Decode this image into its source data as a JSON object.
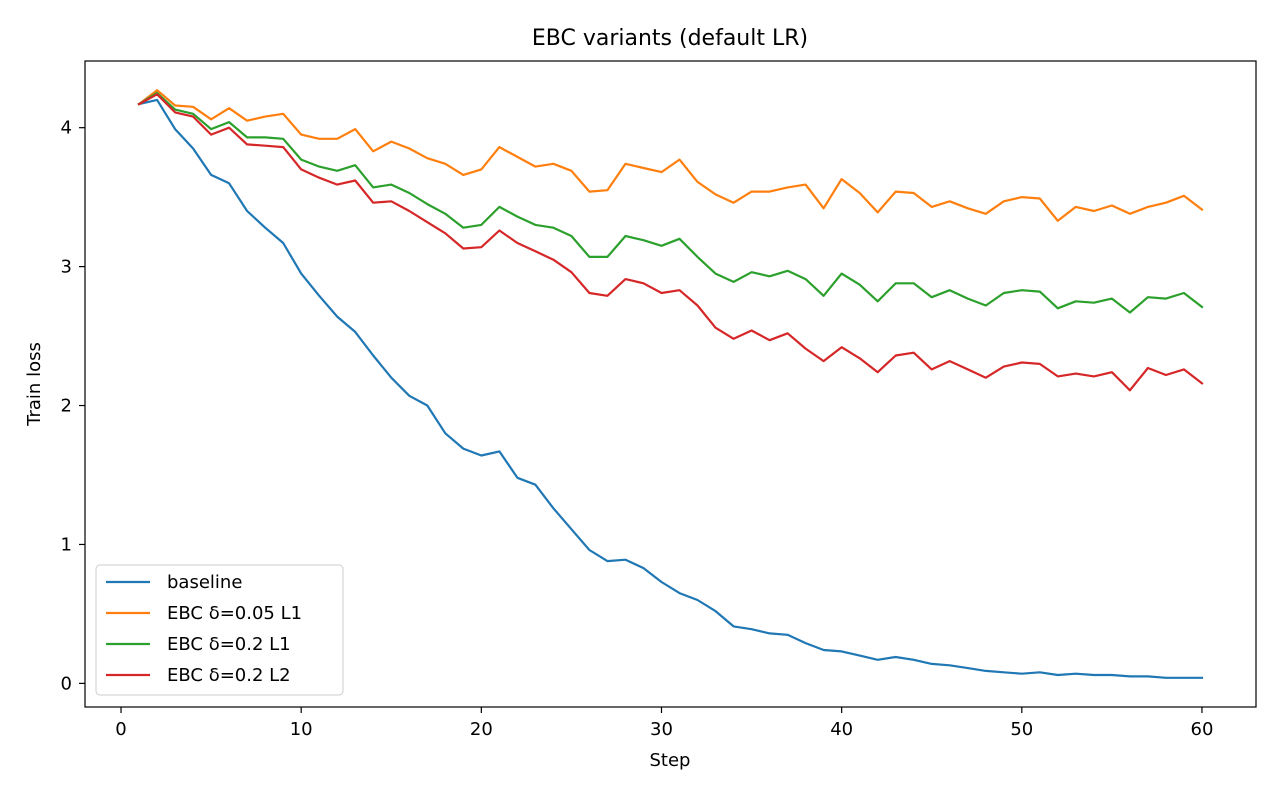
{
  "chart_data": {
    "type": "line",
    "title": "EBC variants (default LR)",
    "xlabel": "Step",
    "ylabel": "Train loss",
    "xlim": [
      -2,
      63
    ],
    "ylim": [
      -0.17,
      4.48
    ],
    "xticks": [
      0,
      10,
      20,
      30,
      40,
      50,
      60
    ],
    "yticks": [
      0,
      1,
      2,
      3,
      4
    ],
    "grid": false,
    "legend": "lower-left",
    "x": [
      1,
      2,
      3,
      4,
      5,
      6,
      7,
      8,
      9,
      10,
      11,
      12,
      13,
      14,
      15,
      16,
      17,
      18,
      19,
      20,
      21,
      22,
      23,
      24,
      25,
      26,
      27,
      28,
      29,
      30,
      31,
      32,
      33,
      34,
      35,
      36,
      37,
      38,
      39,
      40,
      41,
      42,
      43,
      44,
      45,
      46,
      47,
      48,
      49,
      50,
      51,
      52,
      53,
      54,
      55,
      56,
      57,
      58,
      59,
      60
    ],
    "series": [
      {
        "name": "baseline",
        "color": "#1f77b4",
        "values": [
          4.17,
          4.2,
          3.99,
          3.85,
          3.66,
          3.6,
          3.4,
          3.28,
          3.17,
          2.95,
          2.79,
          2.64,
          2.53,
          2.36,
          2.2,
          2.07,
          2.0,
          1.8,
          1.69,
          1.64,
          1.67,
          1.48,
          1.43,
          1.26,
          1.11,
          0.96,
          0.88,
          0.89,
          0.83,
          0.73,
          0.65,
          0.6,
          0.52,
          0.41,
          0.39,
          0.36,
          0.35,
          0.29,
          0.24,
          0.23,
          0.2,
          0.17,
          0.19,
          0.17,
          0.14,
          0.13,
          0.11,
          0.09,
          0.08,
          0.07,
          0.08,
          0.06,
          0.07,
          0.06,
          0.06,
          0.05,
          0.05,
          0.04,
          0.04,
          0.04
        ]
      },
      {
        "name": "EBC δ=0.05 L1",
        "color": "#ff7f0e",
        "values": [
          4.17,
          4.27,
          4.16,
          4.15,
          4.06,
          4.14,
          4.05,
          4.08,
          4.1,
          3.95,
          3.92,
          3.92,
          3.99,
          3.83,
          3.9,
          3.85,
          3.78,
          3.74,
          3.66,
          3.7,
          3.86,
          3.79,
          3.72,
          3.74,
          3.69,
          3.54,
          3.55,
          3.74,
          3.71,
          3.68,
          3.77,
          3.61,
          3.52,
          3.46,
          3.54,
          3.54,
          3.57,
          3.59,
          3.42,
          3.63,
          3.53,
          3.39,
          3.54,
          3.53,
          3.43,
          3.47,
          3.42,
          3.38,
          3.47,
          3.5,
          3.49,
          3.33,
          3.43,
          3.4,
          3.44,
          3.38,
          3.43,
          3.46,
          3.51,
          3.41
        ]
      },
      {
        "name": "EBC δ=0.2 L1",
        "color": "#2ca02c",
        "values": [
          4.17,
          4.25,
          4.13,
          4.1,
          3.99,
          4.04,
          3.93,
          3.93,
          3.92,
          3.77,
          3.72,
          3.69,
          3.73,
          3.57,
          3.59,
          3.53,
          3.45,
          3.38,
          3.28,
          3.3,
          3.43,
          3.36,
          3.3,
          3.28,
          3.22,
          3.07,
          3.07,
          3.22,
          3.19,
          3.15,
          3.2,
          3.07,
          2.95,
          2.89,
          2.96,
          2.93,
          2.97,
          2.91,
          2.79,
          2.95,
          2.87,
          2.75,
          2.88,
          2.88,
          2.78,
          2.83,
          2.77,
          2.72,
          2.81,
          2.83,
          2.82,
          2.7,
          2.75,
          2.74,
          2.77,
          2.67,
          2.78,
          2.77,
          2.81,
          2.71
        ]
      },
      {
        "name": "EBC δ=0.2 L2",
        "color": "#d62728",
        "values": [
          4.17,
          4.24,
          4.11,
          4.08,
          3.95,
          4.0,
          3.88,
          3.87,
          3.86,
          3.7,
          3.64,
          3.59,
          3.62,
          3.46,
          3.47,
          3.4,
          3.32,
          3.24,
          3.13,
          3.14,
          3.26,
          3.17,
          3.11,
          3.05,
          2.96,
          2.81,
          2.79,
          2.91,
          2.88,
          2.81,
          2.83,
          2.72,
          2.56,
          2.48,
          2.54,
          2.47,
          2.52,
          2.41,
          2.32,
          2.42,
          2.34,
          2.24,
          2.36,
          2.38,
          2.26,
          2.32,
          2.26,
          2.2,
          2.28,
          2.31,
          2.3,
          2.21,
          2.23,
          2.21,
          2.24,
          2.11,
          2.27,
          2.22,
          2.26,
          2.16
        ]
      }
    ]
  }
}
